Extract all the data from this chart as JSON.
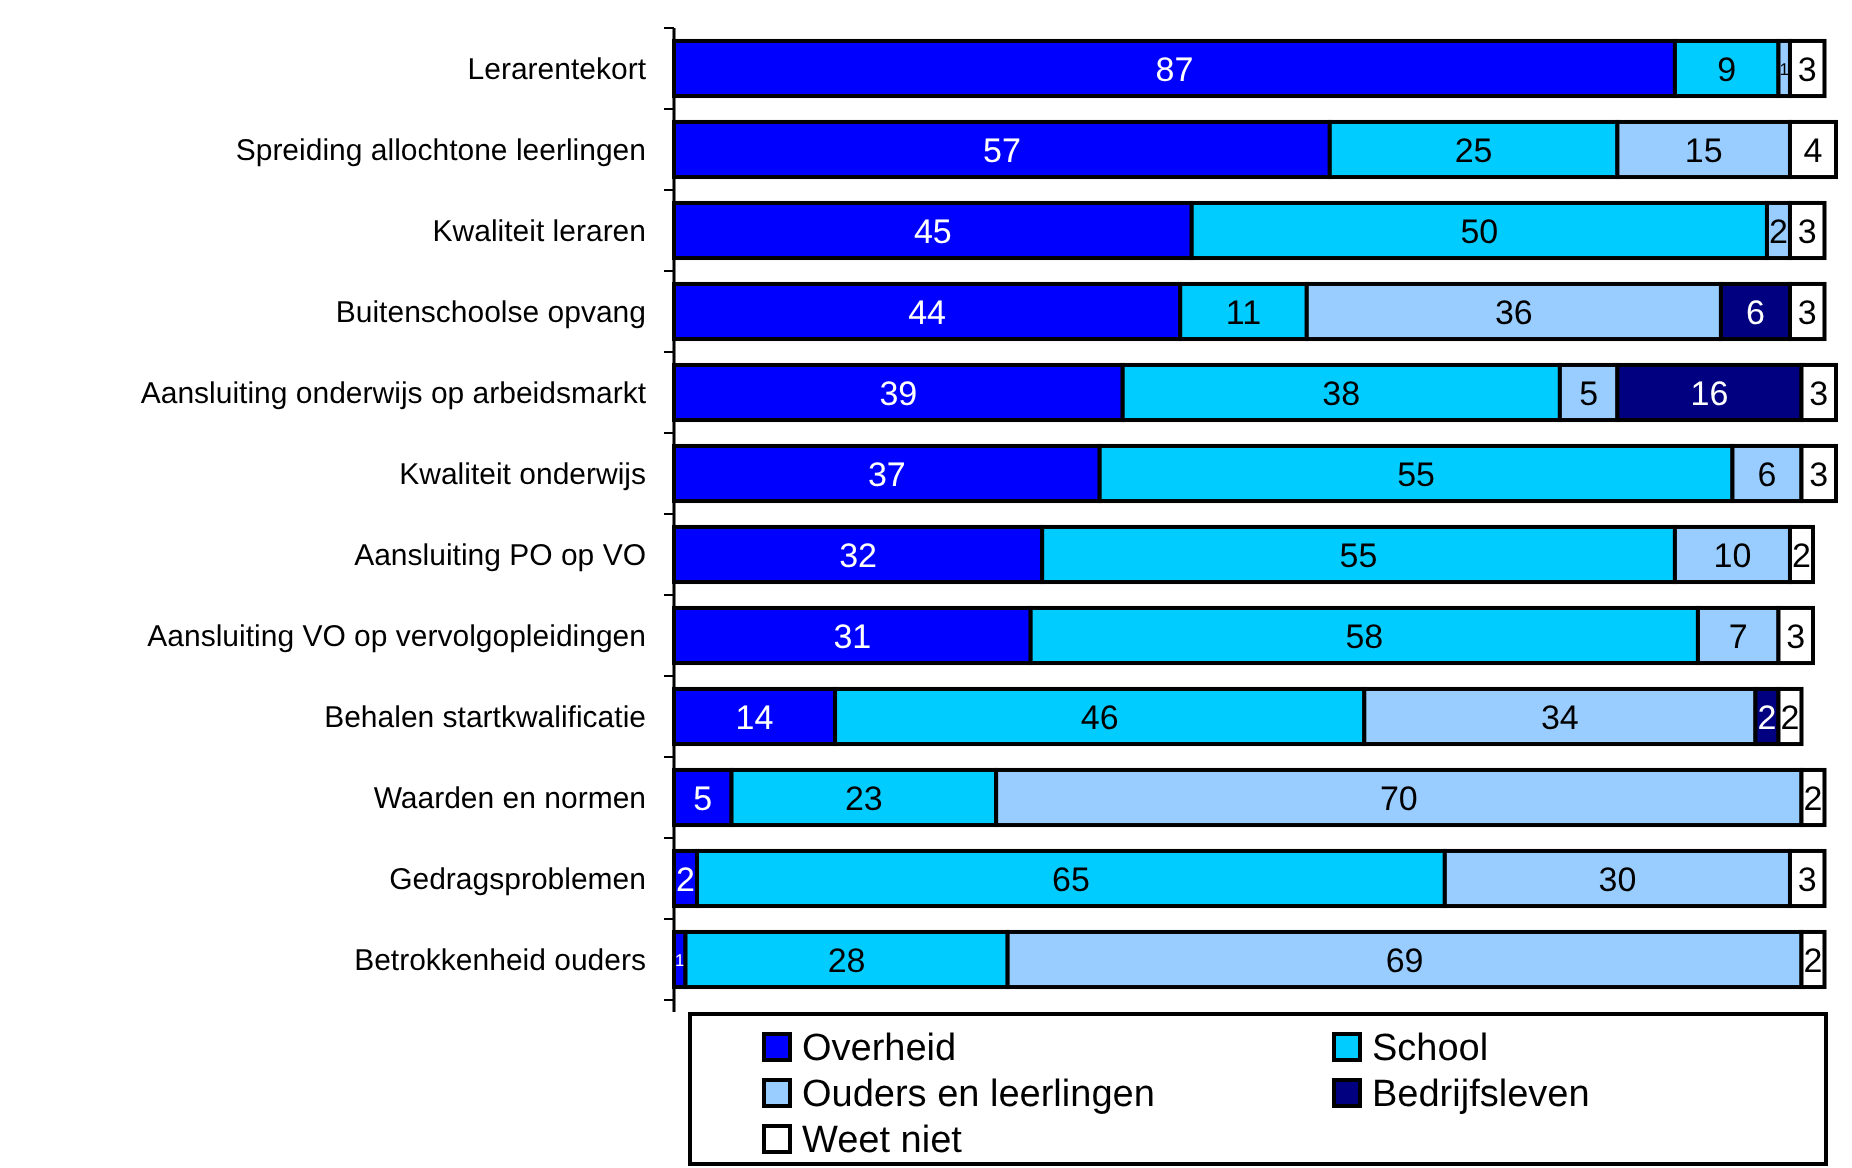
{
  "chart_data": {
    "type": "bar",
    "orientation": "horizontal",
    "stacked": true,
    "data_labels": true,
    "legend": "bottom",
    "tick_labels": "y",
    "xlim": [
      0,
      101
    ],
    "categories": [
      "Lerarentekort",
      "Spreiding allochtone leerlingen",
      "Kwaliteit leraren",
      "Buitenschoolse opvang",
      "Aansluiting onderwijs op arbeidsmarkt",
      "Kwaliteit onderwijs",
      "Aansluiting PO op VO",
      "Aansluiting VO op vervolgopleidingen",
      "Behalen startkwalificatie",
      "Waarden en normen",
      "Gedragsproblemen",
      "Betrokkenheid ouders"
    ],
    "series": [
      {
        "name": "Overheid",
        "color": "#0000ff",
        "values": [
          87,
          57,
          45,
          44,
          39,
          37,
          32,
          31,
          14,
          5,
          2,
          1
        ]
      },
      {
        "name": "School",
        "color": "#00ccff",
        "values": [
          9,
          25,
          50,
          11,
          38,
          55,
          55,
          58,
          46,
          23,
          65,
          28
        ]
      },
      {
        "name": "Ouders en leerlingen",
        "color": "#99ccff",
        "values": [
          1,
          15,
          2,
          36,
          5,
          6,
          10,
          7,
          34,
          70,
          30,
          69
        ]
      },
      {
        "name": "Bedrijfsleven",
        "color": "#000080",
        "values": [
          null,
          null,
          null,
          6,
          16,
          null,
          null,
          null,
          2,
          null,
          null,
          null
        ]
      },
      {
        "name": "Weet niet",
        "color": "#ffffff",
        "values": [
          3,
          4,
          3,
          3,
          3,
          3,
          2,
          3,
          2,
          2,
          3,
          2
        ]
      }
    ]
  }
}
